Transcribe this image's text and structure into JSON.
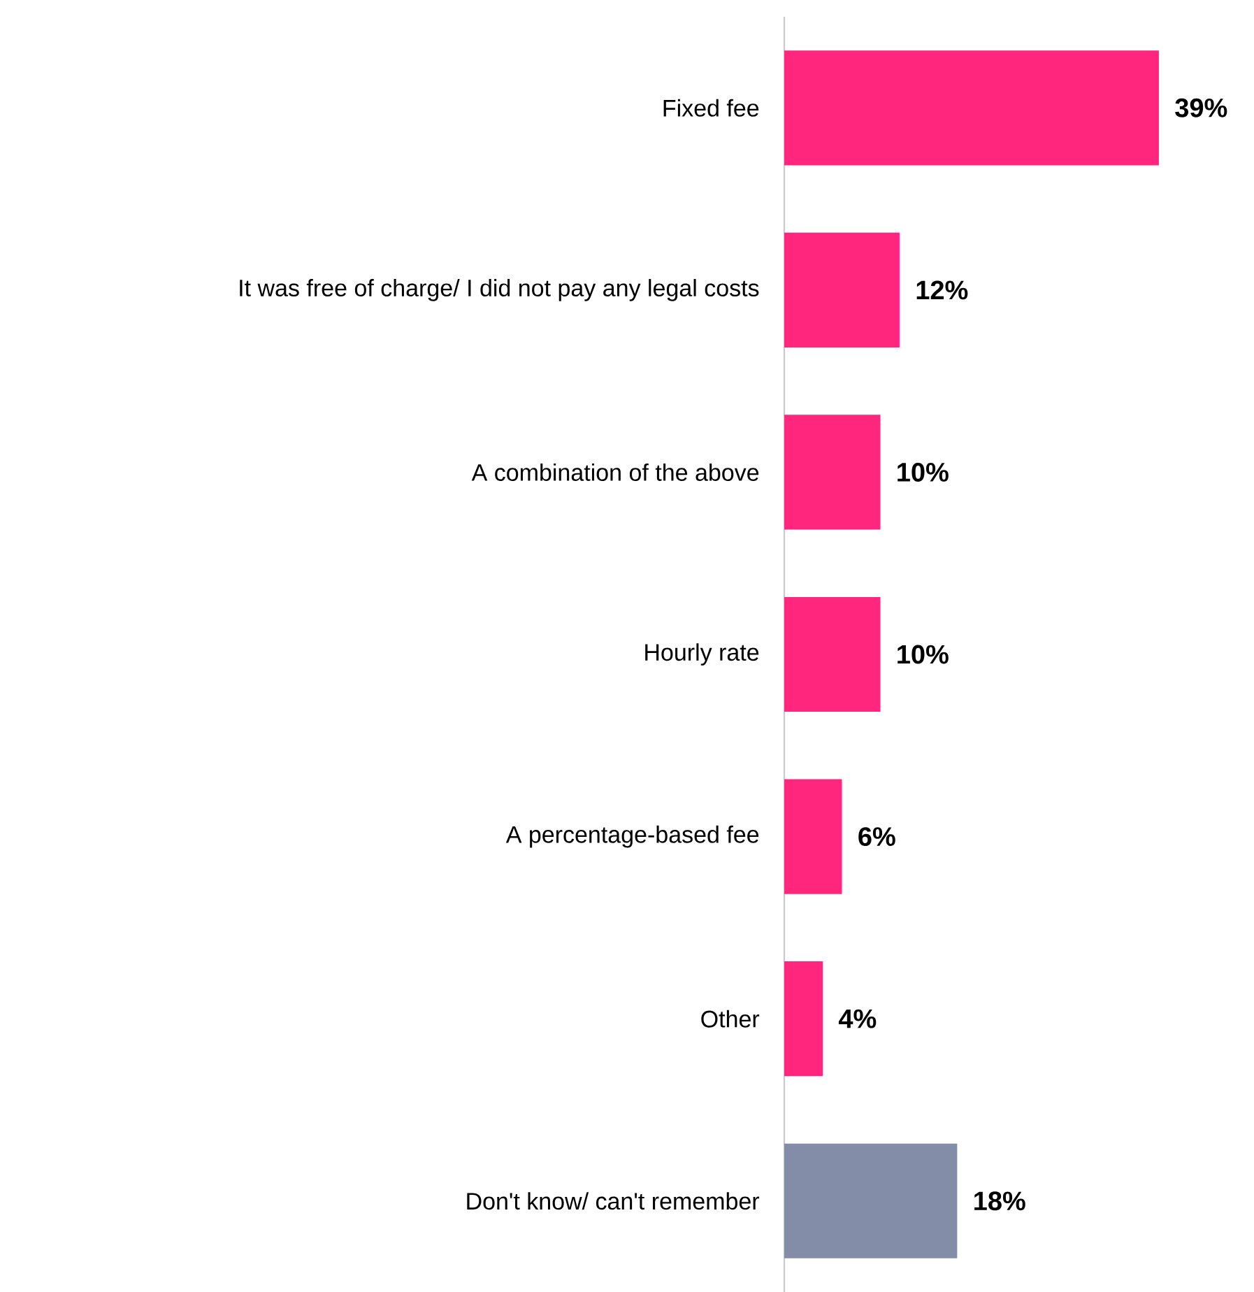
{
  "chart_data": {
    "type": "bar",
    "orientation": "horizontal",
    "categories": [
      "Fixed fee",
      "It was free of charge/ I did not pay any legal costs",
      "A combination of the above",
      "Hourly rate",
      "A percentage-based fee",
      "Other",
      "Don't know/ can't remember"
    ],
    "values": [
      39,
      12,
      10,
      10,
      6,
      4,
      18
    ],
    "value_labels": [
      "39%",
      "12%",
      "10%",
      "10%",
      "6%",
      "4%",
      "18%"
    ],
    "colors": [
      "#ff267e",
      "#ff267e",
      "#ff267e",
      "#ff267e",
      "#ff267e",
      "#ff267e",
      "#838da8"
    ]
  }
}
